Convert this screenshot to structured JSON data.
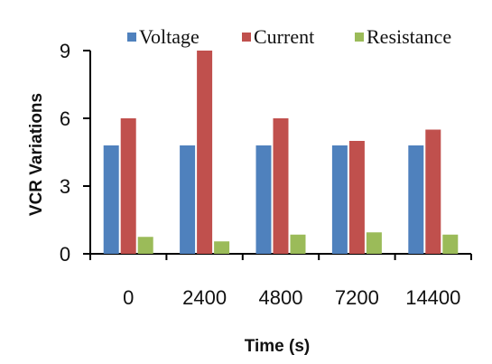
{
  "chart_data": {
    "type": "bar",
    "categories": [
      "0",
      "2400",
      "4800",
      "7200",
      "14400"
    ],
    "series": [
      {
        "name": "Voltage",
        "color": "#4F81BD",
        "values": [
          4.8,
          4.8,
          4.8,
          4.8,
          4.8
        ]
      },
      {
        "name": "Current",
        "color": "#C0504D",
        "values": [
          6.0,
          9.0,
          6.0,
          5.0,
          5.5
        ]
      },
      {
        "name": "Resistance",
        "color": "#9BBB59",
        "values": [
          0.75,
          0.55,
          0.85,
          0.95,
          0.85
        ]
      }
    ],
    "xlabel": "Time (s)",
    "ylabel": "VCR Variations",
    "ylim": [
      0,
      9
    ],
    "yticks": [
      0,
      3,
      6,
      9
    ],
    "grid": false,
    "legend_position": "top"
  },
  "colors": {
    "axis": "#000000",
    "text": "#111111"
  }
}
